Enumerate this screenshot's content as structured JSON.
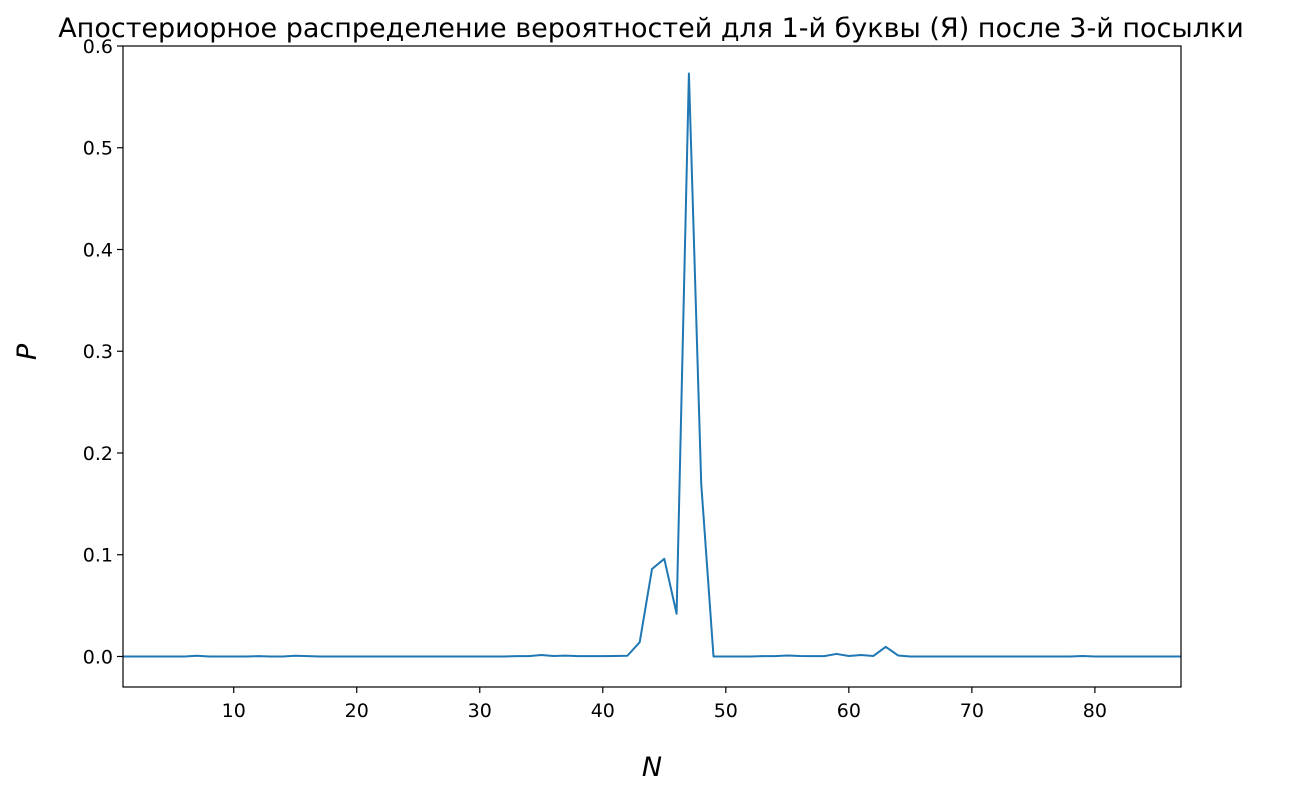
{
  "chart_data": {
    "type": "line",
    "title": "Апостериорное распределение вероятностей для 1-й буквы (Я) после 3-й посылки",
    "xlabel": "N",
    "ylabel": "P",
    "xlim": [
      1,
      87
    ],
    "ylim": [
      -0.03,
      0.6
    ],
    "xticks": [
      10,
      20,
      30,
      40,
      50,
      60,
      70,
      80
    ],
    "yticks": [
      0.0,
      0.1,
      0.2,
      0.3,
      0.4,
      0.5,
      0.6
    ],
    "ytick_labels": [
      "0.0",
      "0.1",
      "0.2",
      "0.3",
      "0.4",
      "0.5",
      "0.6"
    ],
    "grid": false,
    "series": [
      {
        "color": "#1f77b4",
        "x": [
          1,
          2,
          3,
          4,
          5,
          6,
          7,
          8,
          9,
          10,
          11,
          12,
          13,
          14,
          15,
          16,
          17,
          18,
          19,
          20,
          21,
          22,
          23,
          24,
          25,
          26,
          27,
          28,
          29,
          30,
          31,
          32,
          33,
          34,
          35,
          36,
          37,
          38,
          39,
          40,
          41,
          42,
          43,
          44,
          45,
          46,
          47,
          48,
          49,
          50,
          51,
          52,
          53,
          54,
          55,
          56,
          57,
          58,
          59,
          60,
          61,
          62,
          63,
          64,
          65,
          66,
          67,
          68,
          69,
          70,
          71,
          72,
          73,
          74,
          75,
          76,
          77,
          78,
          79,
          80,
          81,
          82,
          83,
          84,
          85,
          86,
          87
        ],
        "values": [
          0.0,
          0.0,
          0.0,
          0.0,
          0.0,
          0.0,
          0.0007,
          0.0,
          0.0,
          0.0,
          0.0,
          0.0003,
          0.0,
          0.0,
          0.0007,
          0.0003,
          0.0,
          0.0,
          0.0,
          0.0,
          0.0,
          0.0,
          0.0,
          0.0,
          0.0,
          0.0,
          0.0,
          0.0,
          0.0,
          0.0,
          0.0,
          0.0,
          0.0003,
          0.0003,
          0.0015,
          0.0005,
          0.0008,
          0.0003,
          0.0003,
          0.0003,
          0.0005,
          0.0007,
          0.014,
          0.086,
          0.096,
          0.042,
          0.573,
          0.17,
          0.0,
          0.0,
          0.0,
          0.0,
          0.0003,
          0.0003,
          0.001,
          0.0005,
          0.0003,
          0.0003,
          0.0025,
          0.0005,
          0.0015,
          0.0005,
          0.0095,
          0.001,
          0.0,
          0.0,
          0.0,
          0.0,
          0.0,
          0.0,
          0.0,
          0.0,
          0.0,
          0.0,
          0.0,
          0.0,
          0.0,
          0.0,
          0.0005,
          0.0,
          0.0,
          0.0,
          0.0,
          0.0,
          0.0,
          0.0,
          0.0
        ]
      }
    ]
  }
}
